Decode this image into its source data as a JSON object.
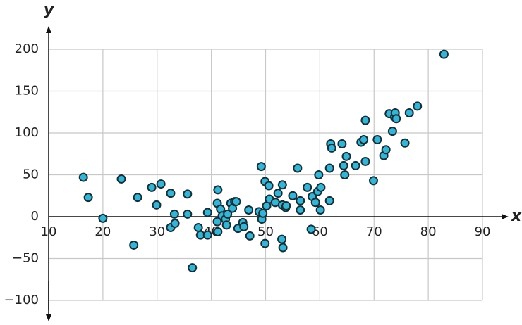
{
  "chart_data": {
    "type": "scatter",
    "x_label": "x",
    "y_label": "y",
    "xlim": [
      10,
      90
    ],
    "ylim": [
      -100,
      200
    ],
    "xticks": [
      10,
      20,
      30,
      40,
      50,
      60,
      70,
      80,
      90
    ],
    "yticks": [
      {
        "value": -100,
        "label": "−100"
      },
      {
        "value": -50,
        "label": "−50"
      },
      0,
      50,
      100,
      150,
      200
    ],
    "grid": true,
    "series": [
      {
        "color": "#3ab3d3",
        "x": [
          16.4,
          17.3,
          20,
          23.4,
          25.7,
          26.4,
          29,
          29.9,
          30.7,
          32.5,
          32.5,
          33.2,
          33.3,
          35.6,
          35.6,
          36.5,
          37.6,
          38,
          39.3,
          39.3,
          41.1,
          41.2,
          41.1,
          41.2,
          41.7,
          42,
          42.6,
          42.8,
          43,
          43.6,
          43.9,
          44.3,
          44.6,
          44.9,
          45.8,
          46,
          46.9,
          47.1,
          48.8,
          49.2,
          49.3,
          49.5,
          49.9,
          49.9,
          50.2,
          50.6,
          50.7,
          51.8,
          52.3,
          53.1,
          53,
          53.2,
          53.1,
          53.7,
          53.8,
          55,
          55.9,
          56.4,
          56.4,
          57.7,
          58.4,
          58.6,
          59.2,
          59.6,
          59.8,
          60.1,
          60.2,
          61.8,
          61.8,
          62,
          62.2,
          64.1,
          64.4,
          64.6,
          64.9,
          66.6,
          67.6,
          68.1,
          68.4,
          68.4,
          69.9,
          70.6,
          71.8,
          72.2,
          72.8,
          73.4,
          73.8,
          73.9,
          74.1,
          75.7,
          76.5,
          78,
          82.9
        ],
        "values": [
          47,
          23,
          -2,
          45,
          -34,
          23,
          35,
          14,
          39,
          28,
          -13,
          3,
          -8,
          3,
          27,
          -61,
          -13,
          -22,
          -22,
          5,
          -6,
          32,
          16,
          -18,
          9,
          1,
          -3,
          -10,
          3,
          16,
          10,
          18,
          18,
          -14,
          -7,
          -12,
          8,
          -23,
          6,
          60,
          -3,
          4,
          42,
          -32,
          13,
          37,
          21,
          17,
          28,
          38,
          -27,
          -37,
          14,
          11,
          13,
          25,
          58,
          8,
          19,
          35,
          -15,
          24,
          17,
          30,
          50,
          8,
          35,
          19,
          58,
          87,
          82,
          87,
          61,
          50,
          72,
          61,
          89,
          92,
          66,
          115,
          43,
          92,
          73,
          80,
          123,
          102,
          119,
          124,
          117,
          88,
          124,
          132,
          194
        ]
      }
    ]
  }
}
